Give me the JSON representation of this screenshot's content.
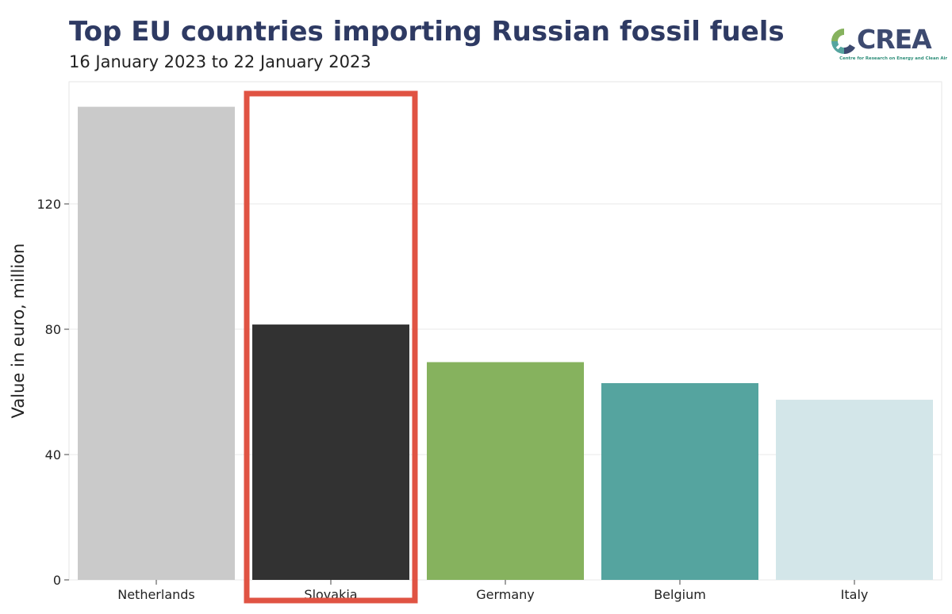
{
  "header": {
    "title": "Top EU countries importing Russian fossil fuels",
    "subtitle": "16 January 2023 to 22 January 2023"
  },
  "logo": {
    "name": "CREA",
    "tagline": "Centre for Research on Energy and Clean Air",
    "colors": [
      "#86b25e",
      "#55a49f",
      "#3d4a70"
    ]
  },
  "chart_data": {
    "type": "bar",
    "title": "Top EU countries importing Russian fossil fuels",
    "subtitle": "16 January 2023 to 22 January 2023",
    "xlabel": "",
    "ylabel": "Value in euro, million",
    "categories": [
      "Netherlands",
      "Slovakia",
      "Germany",
      "Belgium",
      "Italy"
    ],
    "values": [
      151,
      81.5,
      69.5,
      62.8,
      57.5
    ],
    "colors": [
      "#cacaca",
      "#323232",
      "#86b25e",
      "#55a49f",
      "#d3e6e9"
    ],
    "ylim": [
      0,
      159
    ],
    "yticks": [
      0,
      40,
      80,
      120
    ],
    "grid": true,
    "legend": "none",
    "highlight": {
      "category": "Slovakia",
      "color": "#e05343"
    }
  }
}
